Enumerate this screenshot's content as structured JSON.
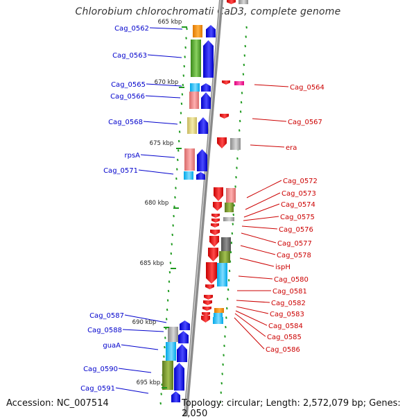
{
  "title": "Chlorobium chlorochromatii CaD3, complete genome",
  "footer": {
    "accession": "Accession: NC_007514",
    "topology": "Topology: circular; Length: 2,572,079 bp; Genes: 2,050"
  },
  "colors": {
    "left_label": "#0000cc",
    "right_label": "#cc0000",
    "backbone": "#8a8a8a",
    "tick": "#1f9a1f",
    "forward_gene": "#0000ff",
    "reverse_gene": "#ff0000"
  },
  "kbp_markers": [
    "665 kbp",
    "670 kbp",
    "675 kbp",
    "680 kbp",
    "685 kbp",
    "690 kbp",
    "695 kbp"
  ],
  "left_labels": [
    "Cag_0562",
    "Cag_0563",
    "Cag_0565",
    "Cag_0566",
    "Cag_0568",
    "rpsA",
    "Cag_0571",
    "Cag_0587",
    "Cag_0588",
    "guaA",
    "Cag_0590",
    "Cag_0591"
  ],
  "right_labels": [
    "Cag_0564",
    "Cag_0567",
    "era",
    "Cag_0572",
    "Cag_0573",
    "Cag_0574",
    "Cag_0575",
    "Cag_0576",
    "Cag_0577",
    "Cag_0578",
    "ispH",
    "Cag_0580",
    "Cag_0581",
    "Cag_0582",
    "Cag_0583",
    "Cag_0584",
    "Cag_0585",
    "Cag_0586"
  ]
}
